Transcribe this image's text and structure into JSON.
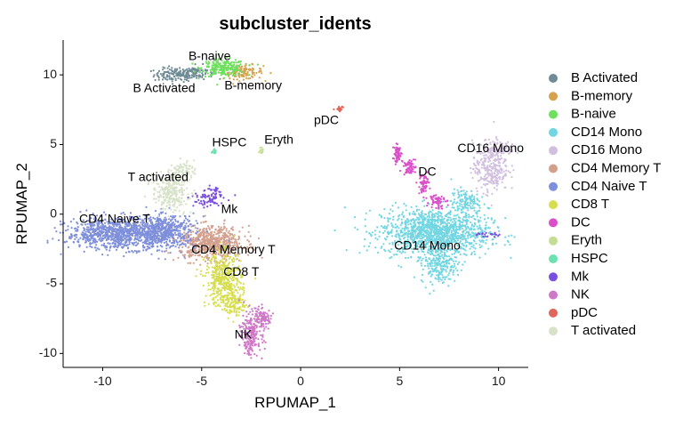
{
  "chart_data": {
    "type": "scatter",
    "title": "subcluster_idents",
    "xlabel": "RPUMAP_1",
    "ylabel": "RPUMAP_2",
    "xlim": [
      -12,
      11.5
    ],
    "ylim": [
      -11,
      12.5
    ],
    "x_ticks": [
      -10,
      -5,
      0,
      5,
      10
    ],
    "y_ticks": [
      -10,
      -5,
      0,
      5,
      10
    ],
    "grid": false,
    "legend_position": "right",
    "clusters": [
      {
        "name": "B Activated",
        "color": "#6F8B95",
        "label_pos": [
          -6.9,
          9.0
        ],
        "blobs": [
          {
            "c": [
              -6.3,
              10.0
            ],
            "s": [
              0.55,
              0.25
            ],
            "n": 130
          },
          {
            "c": [
              -5.3,
              10.2
            ],
            "s": [
              0.45,
              0.25
            ],
            "n": 90
          }
        ]
      },
      {
        "name": "B-memory",
        "color": "#D6A24E",
        "label_pos": [
          -2.4,
          9.2
        ],
        "blobs": [
          {
            "c": [
              -2.9,
              10.2
            ],
            "s": [
              0.5,
              0.25
            ],
            "n": 120
          }
        ]
      },
      {
        "name": "B-naive",
        "color": "#6DE05C",
        "label_pos": [
          -4.6,
          11.3
        ],
        "blobs": [
          {
            "c": [
              -3.9,
              10.5
            ],
            "s": [
              0.55,
              0.3
            ],
            "n": 220
          }
        ]
      },
      {
        "name": "CD14 Mono",
        "color": "#72D6E2",
        "label_pos": [
          6.4,
          -2.3
        ],
        "blobs": [
          {
            "c": [
              6.8,
              -1.3
            ],
            "s": [
              1.35,
              0.85
            ],
            "n": 1300
          },
          {
            "c": [
              7.0,
              -3.6
            ],
            "s": [
              0.45,
              0.7
            ],
            "n": 220
          },
          {
            "c": [
              8.3,
              0.9
            ],
            "s": [
              0.35,
              0.45
            ],
            "n": 120
          }
        ]
      },
      {
        "name": "CD16 Mono",
        "color": "#D1BFDF",
        "label_pos": [
          9.6,
          4.7
        ],
        "blobs": [
          {
            "c": [
              9.6,
              3.4
            ],
            "s": [
              0.45,
              0.9
            ],
            "n": 300
          },
          {
            "c": [
              10.1,
              4.7
            ],
            "s": [
              0.35,
              0.25
            ],
            "n": 70
          }
        ]
      },
      {
        "name": "CD4 Memory T",
        "color": "#D4A08E",
        "label_pos": [
          -3.4,
          -2.6
        ],
        "blobs": [
          {
            "c": [
              -4.5,
              -2.1
            ],
            "s": [
              0.8,
              0.6
            ],
            "n": 650
          }
        ]
      },
      {
        "name": "CD4 Naive T",
        "color": "#7E8FDB",
        "label_pos": [
          -9.4,
          -0.4
        ],
        "blobs": [
          {
            "c": [
              -9.2,
              -1.4
            ],
            "s": [
              1.3,
              0.55
            ],
            "n": 950
          },
          {
            "c": [
              -6.9,
              -1.2
            ],
            "s": [
              0.8,
              0.6
            ],
            "n": 500
          }
        ]
      },
      {
        "name": "CD8 T",
        "color": "#D6DE4E",
        "label_pos": [
          -3.0,
          -4.2
        ],
        "blobs": [
          {
            "c": [
              -3.9,
              -4.7
            ],
            "s": [
              0.45,
              0.95
            ],
            "n": 420
          },
          {
            "c": [
              -3.3,
              -6.4
            ],
            "s": [
              0.3,
              0.45
            ],
            "n": 120
          }
        ]
      },
      {
        "name": "DC",
        "color": "#D94FC9",
        "label_pos": [
          6.4,
          3.0
        ],
        "blobs": [
          {
            "c": [
              4.9,
              4.3
            ],
            "s": [
              0.12,
              0.3
            ],
            "n": 60
          },
          {
            "c": [
              5.5,
              3.4
            ],
            "s": [
              0.15,
              0.3
            ],
            "n": 60
          },
          {
            "c": [
              6.2,
              2.2
            ],
            "s": [
              0.15,
              0.35
            ],
            "n": 60
          },
          {
            "c": [
              6.9,
              1.0
            ],
            "s": [
              0.2,
              0.3
            ],
            "n": 60
          }
        ]
      },
      {
        "name": "Eryth",
        "color": "#C3DE93",
        "label_pos": [
          -1.1,
          5.3
        ],
        "blobs": [
          {
            "c": [
              -2.0,
              4.6
            ],
            "s": [
              0.06,
              0.12
            ],
            "n": 14
          }
        ]
      },
      {
        "name": "HSPC",
        "color": "#6BE2B0",
        "label_pos": [
          -3.6,
          5.1
        ],
        "blobs": [
          {
            "c": [
              -4.4,
              4.5
            ],
            "s": [
              0.08,
              0.12
            ],
            "n": 14
          }
        ]
      },
      {
        "name": "Mk",
        "color": "#7A4FDF",
        "label_pos": [
          -3.6,
          0.3
        ],
        "blobs": [
          {
            "c": [
              -4.8,
              1.0
            ],
            "s": [
              0.45,
              0.3
            ],
            "n": 60
          },
          {
            "c": [
              -4.4,
              1.6
            ],
            "s": [
              0.3,
              0.2
            ],
            "n": 30
          },
          {
            "c": [
              9.4,
              -1.5
            ],
            "s": [
              0.3,
              0.12
            ],
            "n": 20
          }
        ]
      },
      {
        "name": "NK",
        "color": "#CF78C8",
        "label_pos": [
          -2.9,
          -8.7
        ],
        "blobs": [
          {
            "c": [
              -2.4,
              -8.4
            ],
            "s": [
              0.3,
              0.7
            ],
            "n": 200
          },
          {
            "c": [
              -2.0,
              -7.4
            ],
            "s": [
              0.3,
              0.3
            ],
            "n": 80
          },
          {
            "c": [
              -2.6,
              -9.5
            ],
            "s": [
              0.15,
              0.3
            ],
            "n": 40
          }
        ]
      },
      {
        "name": "pDC",
        "color": "#E0655A",
        "label_pos": [
          1.3,
          6.7
        ],
        "blobs": [
          {
            "c": [
              2.0,
              7.6
            ],
            "s": [
              0.12,
              0.1
            ],
            "n": 20
          }
        ]
      },
      {
        "name": "T activated",
        "color": "#D7E2C8",
        "label_pos": [
          -7.2,
          2.6
        ],
        "blobs": [
          {
            "c": [
              -6.6,
              1.5
            ],
            "s": [
              0.45,
              0.6
            ],
            "n": 250
          },
          {
            "c": [
              -6.0,
              3.1
            ],
            "s": [
              0.3,
              0.35
            ],
            "n": 90
          }
        ]
      }
    ]
  }
}
